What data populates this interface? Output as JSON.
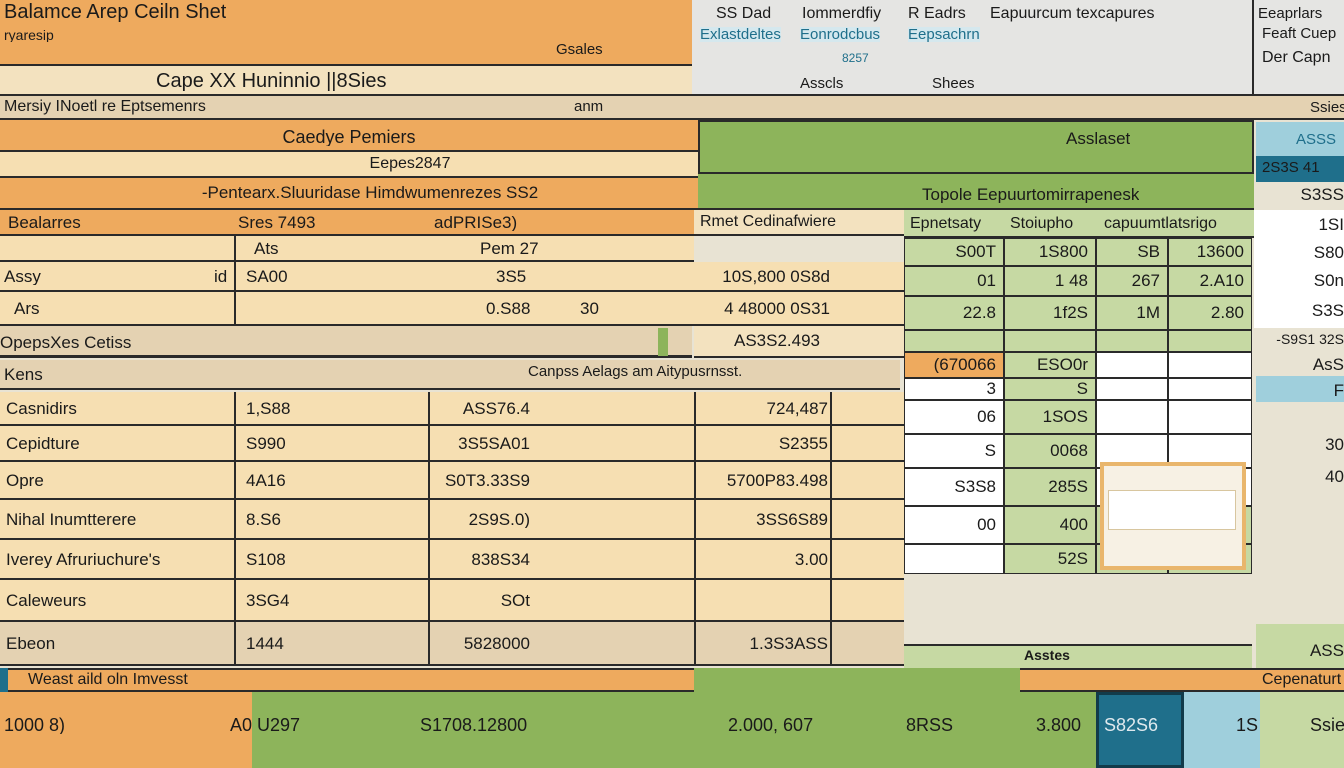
{
  "header": {
    "title": "Balamce Arep Ceiln Shet",
    "subtitle": "ryaresip",
    "gsales": "Gsales",
    "company": "Cape XX  Huninnio ||8Sies",
    "row_left": "Mersiy INoetl re Eptsemenrs",
    "row_mid": "anm"
  },
  "top_menu": {
    "items": [
      "SS Dad",
      "Iommerdfiy",
      "R Eadrs",
      "Eapuurcum texcapures"
    ],
    "links": [
      "Exlastdeltes",
      "Eonrodcbus",
      "Eepsachrn"
    ],
    "sub": "8257",
    "assets": "Asscls",
    "sheets": "Shees"
  },
  "right_header": {
    "line1": "Eeaprlars",
    "line2": "Feaft Cuep",
    "line3": "Der Capn",
    "line4": "Ssies"
  },
  "left_section": {
    "title": "Caedye Pemiers",
    "sub1": "Eepes2847",
    "sub2": "-Pentearx.Sluuridase Himdwumenrezes SS2",
    "col_a": "Bealarres",
    "col_b": "Sres 7493",
    "col_c": "adPRISe3)",
    "col_d": "Ats",
    "col_e": "Pem 27",
    "rows": [
      {
        "label": "Assy",
        "flag": "id",
        "v1": "SA00",
        "v2": "3S5",
        "v3": ""
      },
      {
        "label": "Ars",
        "flag": "",
        "v1": "",
        "v2": "0.S88",
        "v3": "30"
      }
    ],
    "opex": "OpepsXes Cetiss",
    "kens": "Kens",
    "callout": "Canpss Aelags am Aitypusrnsst."
  },
  "detail_rows": [
    {
      "label": "Casnidirs",
      "v1": "1,S88",
      "v2": "ASS76.4",
      "v3": "724,487"
    },
    {
      "label": "Cepidture",
      "v1": "S990",
      "v2": "3S5SA01",
      "v3": "S2355"
    },
    {
      "label": "Opre",
      "v1": "4A16",
      "v2": "S0T3.33S9",
      "v3": "5700P83.498"
    },
    {
      "label": "Nihal Inumtterere",
      "v1": "8.S6",
      "v2": "2S9S.0)",
      "v3": "3SS6S89"
    },
    {
      "label": "Iverey Afruriuchure's",
      "v1": "S108",
      "v2": "838S34",
      "v3": "3.00"
    },
    {
      "label": "Caleweurs",
      "v1": "3SG4",
      "v2": "SOt",
      "v3": ""
    },
    {
      "label": "Ebeon",
      "v1": "1444",
      "v2": "5828000",
      "v3": "1.3S3ASS"
    }
  ],
  "middle": {
    "col_header": "Rmet Cedinafwiere",
    "vals": [
      "10S,800 0S8d",
      "4 48000 0S31",
      "AS3S2.493"
    ]
  },
  "green_section": {
    "title": "Asslaset",
    "subtitle": "Topole Eepuurtomirrapenesk",
    "headers": [
      "Epnetsaty",
      "Stoiupho",
      "capuumtlatsrigo"
    ],
    "rows": [
      [
        "S00T",
        "1S800",
        "SB",
        "13600"
      ],
      [
        "01",
        "1 48",
        "267",
        "2.A10"
      ],
      [
        "22.8",
        "1f2S",
        "1M",
        "2.80"
      ],
      [
        "",
        "",
        "",
        ""
      ],
      [
        "(670066",
        "ESO0r",
        "",
        ""
      ],
      [
        "3",
        "S",
        "",
        ""
      ],
      [
        "06",
        "1SOS",
        "",
        ""
      ],
      [
        "S",
        "0068",
        "",
        ""
      ],
      [
        "S3S8",
        "285S",
        "",
        ""
      ],
      [
        "00",
        "400",
        "",
        ""
      ],
      [
        "",
        "52S",
        "",
        ""
      ]
    ],
    "footer_label": "Asstes"
  },
  "right_column": {
    "tag": "ASSS",
    "tag2": "2S3S 41",
    "v1": "S3SS",
    "v2": "1SI",
    "v3": "S80",
    "v4": "S0n",
    "v5": "S3S",
    "v6": "-S9S1 32S",
    "v7": "AsS",
    "v8": "F",
    "v9": "30",
    "v10": "40",
    "v11": "ASS"
  },
  "footer": {
    "left_label": "Weast aild oln Imvesst",
    "right_label": "Cepenaturt",
    "totals": [
      "1000 8)",
      "A0 U297",
      "S1708.12800",
      "2.000, 607",
      "8RSS",
      "3.800",
      "S82S6",
      "1S",
      "Ssies"
    ]
  }
}
